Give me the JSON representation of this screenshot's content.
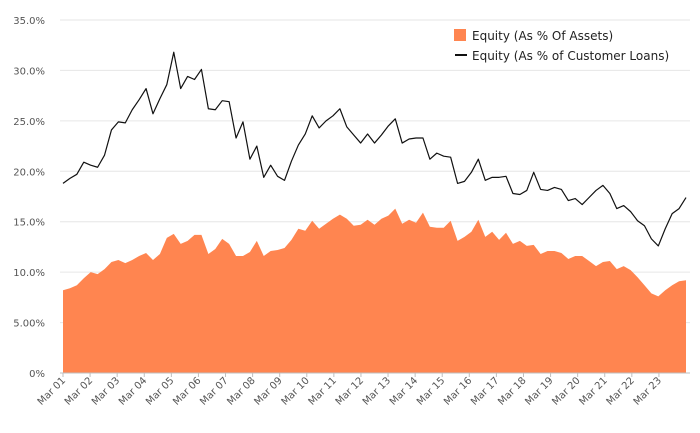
{
  "chart_data": {
    "type": "area",
    "y_axis": {
      "min": 0,
      "max": 35,
      "ticks": [
        0,
        5,
        10,
        15,
        20,
        25,
        30,
        35
      ],
      "tick_labels": [
        "0%",
        "5.00%",
        "10.0%",
        "15.0%",
        "20.0%",
        "25.0%",
        "30.0%",
        "35.0%"
      ]
    },
    "x_axis": {
      "tick_labels": [
        "Mar 01",
        "Mar 02",
        "Mar 03",
        "Mar 04",
        "Mar 05",
        "Mar 06",
        "Mar 07",
        "Mar 08",
        "Mar 09",
        "Mar 10",
        "Mar 11",
        "Mar 12",
        "Mar 13",
        "Mar 14",
        "Mar 15",
        "Mar 16",
        "Mar 17",
        "Mar 18",
        "Mar 19",
        "Mar 20",
        "Mar 21",
        "Mar 22",
        "Mar 23"
      ]
    },
    "grid": true,
    "legend_position": "top-right",
    "series": [
      {
        "name": "Equity (As % Of Assets)",
        "type": "area",
        "color": "#ff8550",
        "values": [
          8.2,
          8.4,
          8.7,
          9.4,
          10.0,
          9.8,
          10.3,
          11.0,
          11.2,
          10.9,
          11.2,
          11.6,
          11.9,
          11.2,
          11.8,
          13.4,
          13.8,
          12.8,
          13.1,
          13.7,
          13.7,
          11.8,
          12.3,
          13.3,
          12.8,
          11.6,
          11.6,
          12.0,
          13.1,
          11.6,
          12.1,
          12.2,
          12.4,
          13.2,
          14.3,
          14.1,
          15.1,
          14.3,
          14.8,
          15.3,
          15.7,
          15.3,
          14.6,
          14.7,
          15.2,
          14.7,
          15.3,
          15.6,
          16.3,
          14.8,
          15.2,
          14.9,
          15.9,
          14.5,
          14.4,
          14.4,
          15.1,
          13.1,
          13.5,
          14.0,
          15.2,
          13.5,
          14.0,
          13.2,
          13.9,
          12.8,
          13.1,
          12.6,
          12.7,
          11.8,
          12.1,
          12.1,
          11.9,
          11.3,
          11.6,
          11.6,
          11.1,
          10.6,
          11.0,
          11.1,
          10.3,
          10.6,
          10.2,
          9.5,
          8.7,
          7.9,
          7.6,
          8.2,
          8.7,
          9.1,
          9.2
        ]
      },
      {
        "name": "Equity (As % of Customer Loans)",
        "type": "line",
        "color": "#111111",
        "values": [
          18.8,
          19.3,
          19.7,
          20.9,
          20.6,
          20.4,
          21.6,
          24.1,
          24.9,
          24.8,
          26.1,
          27.1,
          28.2,
          25.7,
          27.2,
          28.6,
          31.8,
          28.2,
          29.4,
          29.1,
          30.1,
          26.2,
          26.1,
          27.0,
          26.9,
          23.3,
          24.9,
          21.2,
          22.5,
          19.4,
          20.6,
          19.5,
          19.1,
          21.0,
          22.6,
          23.7,
          25.5,
          24.3,
          25.0,
          25.5,
          26.2,
          24.4,
          23.6,
          22.8,
          23.7,
          22.8,
          23.6,
          24.5,
          25.2,
          22.8,
          23.2,
          23.3,
          23.3,
          21.2,
          21.8,
          21.5,
          21.4,
          18.8,
          19.0,
          19.9,
          21.2,
          19.1,
          19.4,
          19.4,
          19.5,
          17.8,
          17.7,
          18.1,
          19.9,
          18.2,
          18.1,
          18.4,
          18.2,
          17.1,
          17.3,
          16.7,
          17.4,
          18.1,
          18.6,
          17.8,
          16.3,
          16.6,
          16.0,
          15.1,
          14.6,
          13.3,
          12.6,
          14.3,
          15.8,
          16.3,
          17.4
        ]
      }
    ]
  }
}
